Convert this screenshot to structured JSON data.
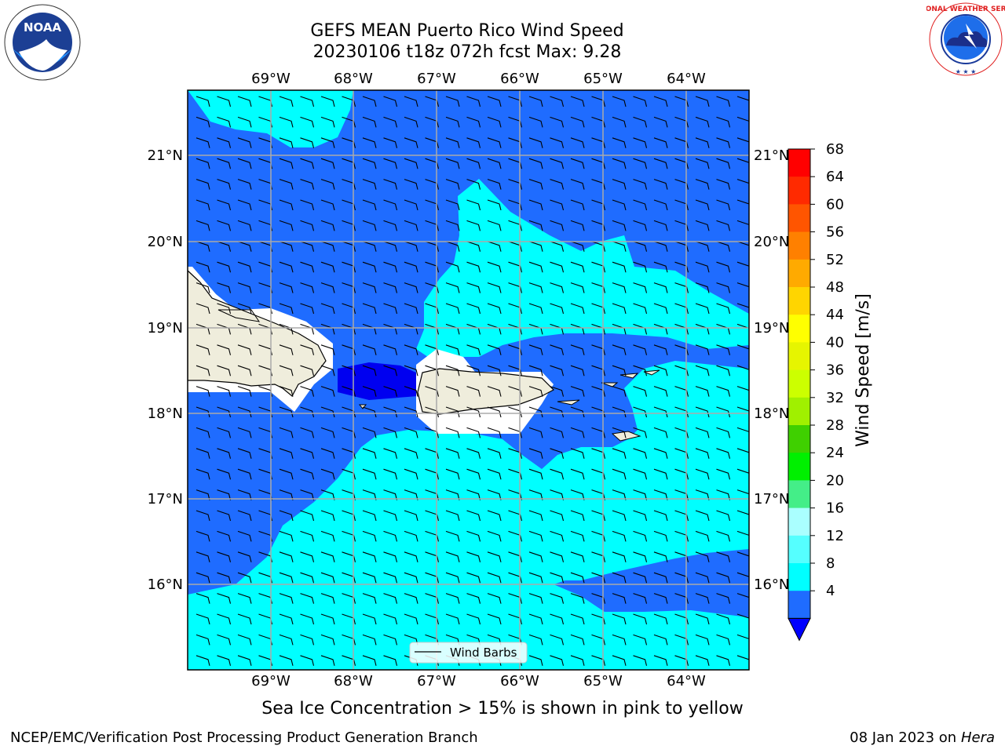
{
  "header": {
    "title_line1": "GEFS MEAN Puerto Rico Wind Speed",
    "title_line2": "20230106 t18z 072h fcst   Max: 9.28"
  },
  "logos": {
    "noaa_text": "NOAA",
    "noaa_ring_text": "NATIONAL OCEANIC AND ATMOSPHERIC ADMINISTRATION · U.S. DEPARTMENT OF COMMERCE",
    "nws_ring_text": "NATIONAL WEATHER SERVICE"
  },
  "map": {
    "lon_labels": [
      "69°W",
      "68°W",
      "67°W",
      "66°W",
      "65°W",
      "64°W"
    ],
    "lat_labels": [
      "21°N",
      "20°N",
      "19°N",
      "18°N",
      "17°N",
      "16°N"
    ],
    "legend_label": "Wind Barbs",
    "colors": {
      "ocean_low": "#1f6cff",
      "ocean_mid": "#00ffff",
      "land": "#efeddc",
      "deep_blue": "#0000f0"
    }
  },
  "colorbar": {
    "label": "Wind Speed [m/s]",
    "ticks": [
      "68",
      "64",
      "60",
      "56",
      "52",
      "48",
      "44",
      "40",
      "36",
      "32",
      "28",
      "24",
      "20",
      "16",
      "12",
      "8",
      "4"
    ],
    "colors": [
      "#ff0000",
      "#ff2a00",
      "#ff5500",
      "#ff8000",
      "#ffaa00",
      "#ffd500",
      "#ffff00",
      "#e6f500",
      "#ccff00",
      "#a0f000",
      "#3fd000",
      "#00f000",
      "#44ee88",
      "#aaffff",
      "#55ffff",
      "#00ffff",
      "#1f6cff"
    ],
    "extend_color": "#0000ff"
  },
  "footer": {
    "caption": "Sea Ice Concentration > 15% is shown in pink to yellow",
    "left": "NCEP/EMC/Verification Post Processing Product Generation Branch",
    "date": "08 Jan 2023 on ",
    "machine": "Hera"
  }
}
